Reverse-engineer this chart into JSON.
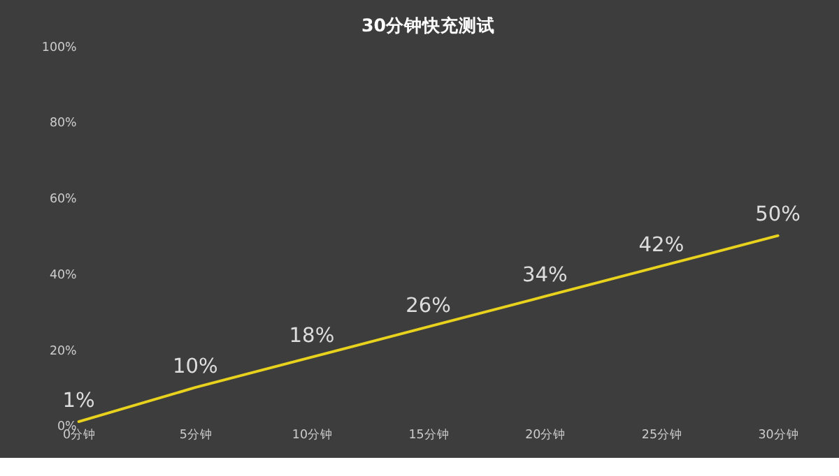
{
  "chart_data": {
    "type": "line",
    "title": "30分钟快充测试",
    "categories": [
      "0分钟",
      "5分钟",
      "10分钟",
      "15分钟",
      "20分钟",
      "25分钟",
      "30分钟"
    ],
    "series": [
      {
        "color": "#e8d21e",
        "values": [
          1,
          10,
          18,
          26,
          34,
          42,
          50
        ],
        "value_labels": [
          "1%",
          "10%",
          "18%",
          "26%",
          "34%",
          "42%",
          "50%"
        ]
      }
    ],
    "ylim": [
      0,
      100
    ],
    "yticks": [
      {
        "value": 0,
        "label": "0%"
      },
      {
        "value": 20,
        "label": "20%"
      },
      {
        "value": 40,
        "label": "40%"
      },
      {
        "value": 60,
        "label": "60%"
      },
      {
        "value": 80,
        "label": "80%"
      },
      {
        "value": 100,
        "label": "100%"
      }
    ],
    "grid": false,
    "marker": "none",
    "line_style": "solid"
  }
}
